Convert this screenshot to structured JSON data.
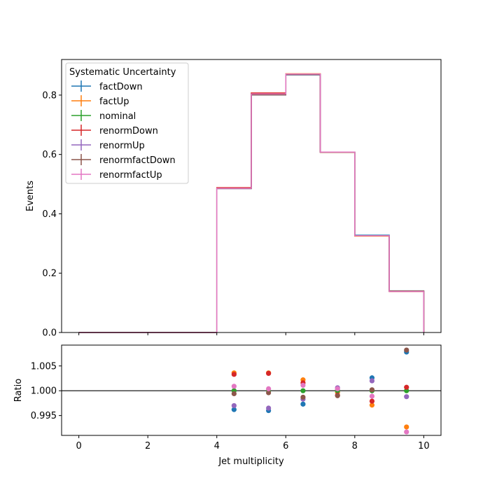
{
  "chart_data": [
    {
      "type": "line",
      "drawstyle": "steps",
      "ylabel": "Events",
      "xlabel": "",
      "xlim": [
        -0.5,
        10.5
      ],
      "ylim": [
        0,
        0.92
      ],
      "yticks": [
        0.0,
        0.2,
        0.4,
        0.6,
        0.8
      ],
      "ytick_labels": [
        "0.0",
        "0.2",
        "0.4",
        "0.6",
        "0.8"
      ],
      "xticks": [
        0,
        2,
        4,
        6,
        8,
        10
      ],
      "bin_edges": [
        0,
        1,
        2,
        3,
        4,
        5,
        6,
        7,
        8,
        9,
        10
      ],
      "legend": {
        "title": "Systematic Uncertainty",
        "placement": "upper-left"
      },
      "series": [
        {
          "name": "factDown",
          "color": "#1f77b4",
          "values": [
            0,
            0,
            0,
            0,
            0.485,
            0.801,
            0.868,
            0.608,
            0.328,
            0.14
          ]
        },
        {
          "name": "factUp",
          "color": "#ff7f0e",
          "values": [
            0,
            0,
            0,
            0,
            0.488,
            0.807,
            0.872,
            0.607,
            0.325,
            0.138
          ]
        },
        {
          "name": "nominal",
          "color": "#2ca02c",
          "values": [
            0,
            0,
            0,
            0,
            0.486,
            0.804,
            0.87,
            0.608,
            0.326,
            0.139
          ]
        },
        {
          "name": "renormDown",
          "color": "#d62728",
          "values": [
            0,
            0,
            0,
            0,
            0.488,
            0.807,
            0.871,
            0.608,
            0.326,
            0.139
          ]
        },
        {
          "name": "renormUp",
          "color": "#9467bd",
          "values": [
            0,
            0,
            0,
            0,
            0.485,
            0.801,
            0.869,
            0.608,
            0.326,
            0.139
          ]
        },
        {
          "name": "renormfactDown",
          "color": "#8c564b",
          "values": [
            0,
            0,
            0,
            0,
            0.485,
            0.801,
            0.869,
            0.607,
            0.326,
            0.14
          ]
        },
        {
          "name": "renormfactUp",
          "color": "#e377c2",
          "values": [
            0,
            0,
            0,
            0,
            0.486,
            0.804,
            0.871,
            0.608,
            0.326,
            0.138
          ]
        }
      ]
    },
    {
      "type": "scatter",
      "ylabel": "Ratio",
      "xlabel": "Jet multiplicity",
      "xlim": [
        -0.5,
        10.5
      ],
      "ylim": [
        0.991,
        1.0092
      ],
      "yticks": [
        0.995,
        1.0,
        1.005
      ],
      "ytick_labels": [
        "0.995",
        "1.000",
        "1.005"
      ],
      "xticks": [
        0,
        2,
        4,
        6,
        8,
        10
      ],
      "xtick_labels": [
        "0",
        "2",
        "4",
        "6",
        "8",
        "10"
      ],
      "reference_line": 1.0,
      "x": [
        4.5,
        5.5,
        6.5,
        7.5,
        8.5,
        9.5
      ],
      "series": [
        {
          "name": "factDown",
          "color": "#1f77b4",
          "values": [
            0.9962,
            0.996,
            0.9973,
            1.0001,
            1.0026,
            1.0078
          ]
        },
        {
          "name": "factUp",
          "color": "#ff7f0e",
          "values": [
            1.0036,
            1.0036,
            1.0022,
            0.9997,
            0.9971,
            0.9927
          ]
        },
        {
          "name": "nominal",
          "color": "#2ca02c",
          "values": [
            1.0,
            1.0,
            1.0,
            1.0,
            1.0,
            1.0
          ]
        },
        {
          "name": "renormDown",
          "color": "#d62728",
          "values": [
            1.0033,
            1.0035,
            1.0016,
            0.9991,
            0.9979,
            1.0007
          ]
        },
        {
          "name": "renormUp",
          "color": "#9467bd",
          "values": [
            0.997,
            0.9965,
            0.9983,
            1.0006,
            1.002,
            0.9988
          ]
        },
        {
          "name": "renormfactDown",
          "color": "#8c564b",
          "values": [
            0.9994,
            0.9996,
            0.9987,
            0.999,
            1.0002,
            1.0082
          ]
        },
        {
          "name": "renormfactUp",
          "color": "#e377c2",
          "values": [
            1.0009,
            1.0004,
            1.0011,
            1.0004,
            0.9989,
            0.9917
          ]
        }
      ]
    }
  ]
}
